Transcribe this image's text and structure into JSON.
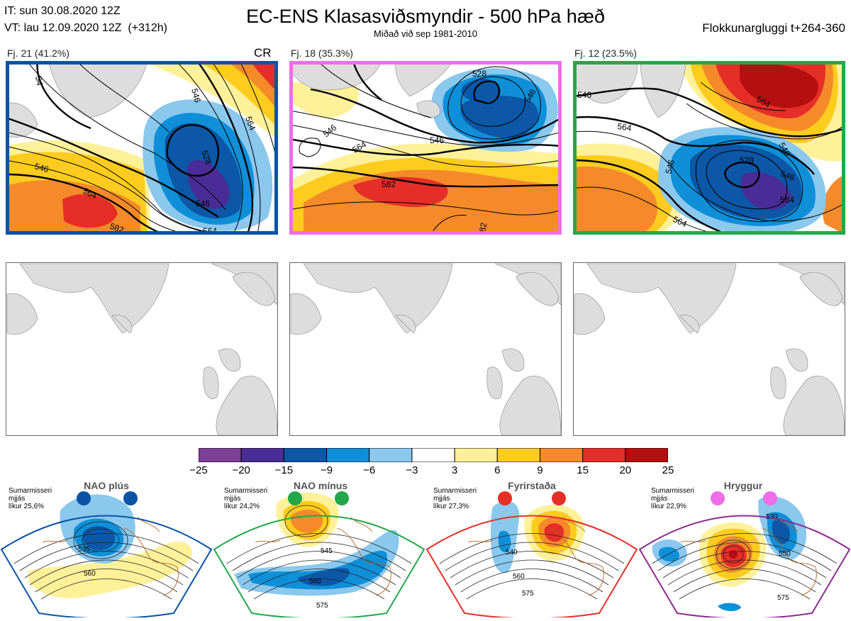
{
  "header": {
    "init_time": "IT: sun 30.08.2020 12Z",
    "valid_time": "VT: lau 12.09.2020 12Z  (+312h)",
    "title": "EC-ENS Klasasviðsmyndir - 500 hPa hæð",
    "subtitle": "Miðað við sep 1981-2010",
    "window": "Flokkunargluggi t+264-360"
  },
  "clusters": [
    {
      "label": "Fj. 21 (41.2%)",
      "tag": "CR",
      "frame_color": "#0a53a6",
      "contour_labels": [
        "54",
        "528",
        "546",
        "546",
        "564",
        "546",
        "582",
        "564",
        "564"
      ]
    },
    {
      "label": "Fj. 18 (35.3%)",
      "tag": "",
      "frame_color": "#ee6ee8",
      "contour_labels": [
        "528",
        "546",
        "546",
        "564",
        "546",
        "582",
        "82"
      ]
    },
    {
      "label": "Fj. 12 (23.5%)",
      "tag": "",
      "frame_color": "#22a84a",
      "contour_labels": [
        "546",
        "564",
        "564",
        "546",
        "528",
        "546",
        "564",
        "564",
        "546"
      ]
    }
  ],
  "colorbar": {
    "colors": [
      "#7e3f98",
      "#4a2c96",
      "#0d57a7",
      "#0f8fd8",
      "#8ac8ee",
      "#ffffff",
      "#fff19a",
      "#fdcc1e",
      "#f58a2a",
      "#e62e28",
      "#b50f10"
    ],
    "ticks": [
      "−25",
      "−20",
      "−15",
      "−9",
      "−6",
      "−3",
      "3",
      "6",
      "9",
      "15",
      "20",
      "25"
    ]
  },
  "regimes": [
    {
      "name": "NAO plús",
      "info": [
        "Sumarmisseri",
        "mjjás",
        "líkur 25,6%"
      ],
      "dot_color": "#0a53a6",
      "frame_color": "#0a53a6",
      "contour_labels": [
        "535",
        "560"
      ]
    },
    {
      "name": "NAO mínus",
      "info": [
        "Sumarmisseri",
        "mjjás",
        "líkur 24,2%"
      ],
      "dot_color": "#22a84a",
      "frame_color": "#22a84a",
      "contour_labels": [
        "545",
        "560",
        "575"
      ]
    },
    {
      "name": "Fyrirstaða",
      "info": [
        "Sumarmisseri",
        "mjjás",
        "líkur 27,3%"
      ],
      "dot_color": "#e62e28",
      "frame_color": "#e62e28",
      "contour_labels": [
        "540",
        "560",
        "575"
      ]
    },
    {
      "name": "Hryggur",
      "info": [
        "Sumarmisseri",
        "mjjás",
        "líkur 22,9%"
      ],
      "dot_color": "#ee6ee8",
      "frame_color": "#8a2a8e",
      "contour_labels": [
        "530",
        "550",
        "575"
      ]
    }
  ]
}
